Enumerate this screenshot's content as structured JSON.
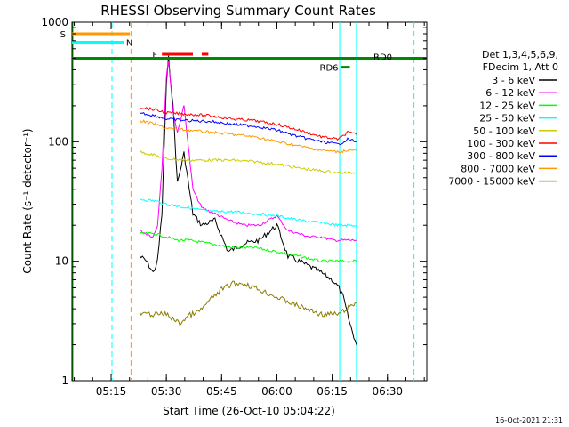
{
  "chart_data": {
    "type": "line",
    "title": "RHESSI Observing Summary Count Rates",
    "xlabel": "Start Time (26-Oct-10 05:04:22)",
    "ylabel": "Count Rate (s⁻¹ detector⁻¹)",
    "yscale": "log",
    "ylim": [
      1,
      1000
    ],
    "xlim": [
      5.073,
      6.678
    ],
    "y_ticks": [
      "1",
      "10",
      "100",
      "1000"
    ],
    "x_ticks": [
      {
        "label": "05:15",
        "value": 5.25
      },
      {
        "label": "05:30",
        "value": 5.5
      },
      {
        "label": "05:45",
        "value": 5.75
      },
      {
        "label": "06:00",
        "value": 6.0
      },
      {
        "label": "06:15",
        "value": 6.25
      },
      {
        "label": "06:30",
        "value": 6.5
      }
    ],
    "legend_header": [
      "Det 1,3,4,5,6,9,",
      "FDecim 1, Att 0"
    ],
    "legend_placement": "right",
    "timestamp": "16-Oct-2021 21:31",
    "series": [
      {
        "name": "3 - 6 keV",
        "color": "#000000",
        "x": [
          5.38,
          5.41,
          5.44,
          5.46,
          5.48,
          5.5,
          5.51,
          5.53,
          5.55,
          5.58,
          5.62,
          5.66,
          5.72,
          5.78,
          5.85,
          5.92,
          6.0,
          6.05,
          6.1,
          6.15,
          6.2,
          6.25,
          6.28,
          6.3,
          6.33,
          6.36
        ],
        "y": [
          11,
          10,
          8,
          10,
          25,
          300,
          500,
          200,
          45,
          80,
          25,
          20,
          22,
          12,
          14,
          15,
          20,
          11,
          10,
          9,
          8,
          7,
          6,
          5,
          3,
          2
        ]
      },
      {
        "name": "6 - 12 keV",
        "color": "#ff00ff",
        "x": [
          5.38,
          5.41,
          5.44,
          5.46,
          5.48,
          5.5,
          5.51,
          5.53,
          5.55,
          5.58,
          5.62,
          5.66,
          5.72,
          5.78,
          5.85,
          5.92,
          6.0,
          6.05,
          6.1,
          6.15,
          6.2,
          6.25,
          6.3,
          6.33,
          6.36
        ],
        "y": [
          18,
          17,
          16,
          20,
          60,
          350,
          480,
          180,
          120,
          200,
          40,
          28,
          25,
          22,
          20,
          20,
          24,
          18,
          17,
          16,
          16,
          15,
          15,
          15,
          15
        ]
      },
      {
        "name": "12 - 25 keV",
        "color": "#00ff00",
        "x": [
          5.38,
          5.45,
          5.5,
          5.55,
          5.6,
          5.7,
          5.8,
          5.9,
          6.0,
          6.1,
          6.2,
          6.28,
          6.32,
          6.36
        ],
        "y": [
          17,
          17,
          16,
          15,
          15,
          14,
          13,
          13,
          12,
          11,
          10,
          10,
          10,
          10
        ]
      },
      {
        "name": "25 - 50 keV",
        "color": "#00ffff",
        "x": [
          5.38,
          5.45,
          5.5,
          5.6,
          5.7,
          5.8,
          5.9,
          6.0,
          6.1,
          6.2,
          6.28,
          6.32,
          6.36
        ],
        "y": [
          33,
          32,
          30,
          28,
          26,
          26,
          25,
          24,
          22,
          21,
          20,
          20,
          20
        ]
      },
      {
        "name": "50 - 100 keV",
        "color": "#cccc00",
        "x": [
          5.38,
          5.45,
          5.5,
          5.6,
          5.7,
          5.8,
          5.9,
          6.0,
          6.1,
          6.2,
          6.28,
          6.32,
          6.36
        ],
        "y": [
          82,
          77,
          72,
          70,
          70,
          70,
          68,
          65,
          60,
          57,
          55,
          55,
          55
        ]
      },
      {
        "name": "100 - 300 keV",
        "color": "#ff0000",
        "x": [
          5.38,
          5.45,
          5.5,
          5.6,
          5.7,
          5.8,
          5.9,
          6.0,
          6.1,
          6.2,
          6.28,
          6.32,
          6.36
        ],
        "y": [
          195,
          185,
          175,
          170,
          165,
          155,
          150,
          140,
          125,
          110,
          105,
          120,
          115
        ]
      },
      {
        "name": "300 - 800 keV",
        "color": "#0000ff",
        "x": [
          5.38,
          5.45,
          5.5,
          5.6,
          5.7,
          5.8,
          5.9,
          6.0,
          6.1,
          6.2,
          6.28,
          6.32,
          6.36
        ],
        "y": [
          175,
          165,
          155,
          150,
          148,
          140,
          135,
          125,
          110,
          100,
          95,
          105,
          100
        ]
      },
      {
        "name": "800 - 7000 keV",
        "color": "#ff9900",
        "x": [
          5.38,
          5.45,
          5.5,
          5.6,
          5.7,
          5.8,
          5.9,
          6.0,
          6.1,
          6.2,
          6.28,
          6.32,
          6.36
        ],
        "y": [
          150,
          140,
          130,
          125,
          120,
          115,
          110,
          100,
          92,
          85,
          82,
          85,
          85
        ]
      },
      {
        "name": "7000 - 15000 keV",
        "color": "#8b7d00",
        "x": [
          5.38,
          5.5,
          5.56,
          5.6,
          5.65,
          5.7,
          5.75,
          5.8,
          5.85,
          5.9,
          6.0,
          6.1,
          6.2,
          6.28,
          6.36
        ],
        "y": [
          3.6,
          3.6,
          3.0,
          3.5,
          3.8,
          4.8,
          5.8,
          6.5,
          6.5,
          6.0,
          5.0,
          4.2,
          3.6,
          3.6,
          4.5
        ]
      }
    ],
    "annotations": [
      {
        "label": "S",
        "color": "#ff9900",
        "y": 800,
        "x_start": 5.073,
        "x_end": 5.335
      },
      {
        "label": "N",
        "color": "#00ffff",
        "y": 680,
        "x_start": 5.073,
        "x_end": 5.31
      },
      {
        "label": "F",
        "color": "#ff0000",
        "y": 540,
        "segments": [
          [
            5.48,
            5.62
          ],
          [
            5.66,
            5.69
          ]
        ]
      },
      {
        "label": "RD6",
        "color": "#008800",
        "y": 420,
        "x_start": 6.29,
        "x_end": 6.33
      },
      {
        "label": "RD0",
        "color": "#008800",
        "y": 500,
        "x_start": 5.073,
        "x_end": 6.678
      }
    ]
  }
}
